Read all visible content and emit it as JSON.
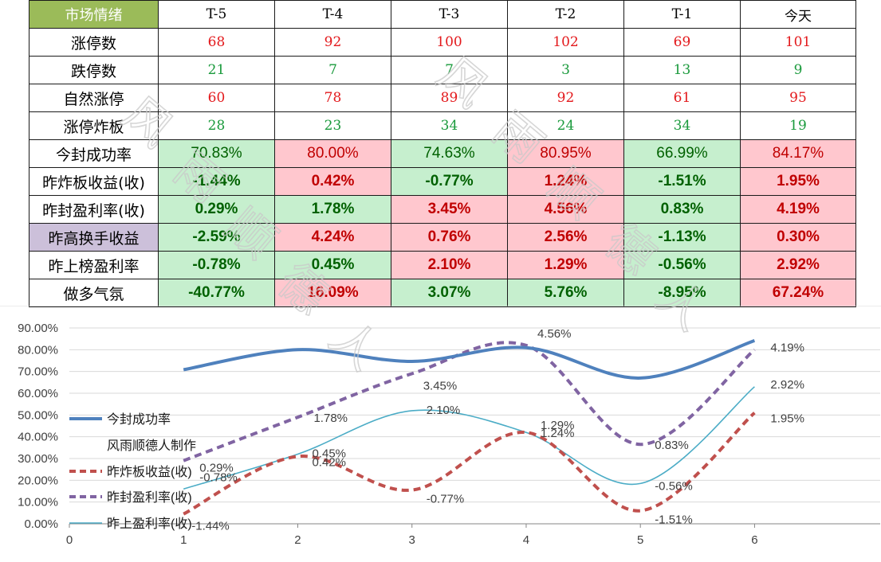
{
  "table": {
    "header": [
      "市场情绪",
      "T-5",
      "T-4",
      "T-3",
      "T-2",
      "T-1",
      "今天"
    ],
    "rows": [
      {
        "label": "涨停数",
        "values": [
          "68",
          "92",
          "100",
          "102",
          "69",
          "101"
        ],
        "color": "red"
      },
      {
        "label": "跌停数",
        "values": [
          "21",
          "7",
          "7",
          "3",
          "13",
          "9"
        ],
        "color": "green"
      },
      {
        "label": "自然涨停",
        "values": [
          "60",
          "78",
          "89",
          "92",
          "61",
          "95"
        ],
        "color": "red"
      },
      {
        "label": "涨停炸板",
        "values": [
          "28",
          "23",
          "34",
          "24",
          "34",
          "19"
        ],
        "color": "green"
      },
      {
        "label": "今封成功率",
        "values": [
          "70.83%",
          "80.00%",
          "74.63%",
          "80.95%",
          "66.99%",
          "84.17%"
        ],
        "fills": [
          "g",
          "r",
          "g",
          "r",
          "g",
          "r"
        ],
        "bold": false
      },
      {
        "label": "昨炸板收益(收)",
        "values": [
          "-1.44%",
          "0.42%",
          "-0.77%",
          "1.24%",
          "-1.51%",
          "1.95%"
        ],
        "fills": [
          "g",
          "r",
          "g",
          "r",
          "g",
          "r"
        ],
        "bold": true
      },
      {
        "label": "昨封盈利率(收)",
        "values": [
          "0.29%",
          "1.78%",
          "3.45%",
          "4.56%",
          "0.83%",
          "4.19%"
        ],
        "fills": [
          "g",
          "g",
          "r",
          "r",
          "g",
          "r"
        ],
        "bold": true
      },
      {
        "label": "昨高换手收益",
        "values": [
          "-2.59%",
          "4.24%",
          "0.76%",
          "2.56%",
          "-1.13%",
          "0.30%"
        ],
        "fills": [
          "g",
          "r",
          "r",
          "r",
          "g",
          "r"
        ],
        "bold": true,
        "purple": true
      },
      {
        "label": "昨上榜盈利率",
        "values": [
          "-0.78%",
          "0.45%",
          "2.10%",
          "1.29%",
          "-0.56%",
          "2.92%"
        ],
        "fills": [
          "g",
          "g",
          "r",
          "r",
          "g",
          "r"
        ],
        "bold": true
      },
      {
        "label": "做多气氛",
        "values": [
          "-40.77%",
          "16.09%",
          "3.07%",
          "5.76%",
          "-8.95%",
          "67.24%"
        ],
        "fills": [
          "g",
          "r",
          "g",
          "g",
          "g",
          "r"
        ],
        "bold": true
      }
    ]
  },
  "watermark": [
    "风",
    "雨",
    "顺",
    "德",
    "人"
  ],
  "colors": {
    "series1": "#4f81bd",
    "series2": "#c0504d",
    "series3": "#8064a2",
    "series4": "#4bacc6",
    "header_bg": "#9bbb59",
    "fill_green": "#c6efce",
    "fill_red": "#ffc7ce"
  },
  "chart_data": {
    "type": "line",
    "x": [
      1,
      2,
      3,
      4,
      5,
      6
    ],
    "xticks": [
      "0",
      "1",
      "2",
      "3",
      "4",
      "5",
      "6"
    ],
    "xlim": [
      0,
      7.1
    ],
    "ylim": [
      0,
      0.9
    ],
    "yticks": [
      "0.00%",
      "10.00%",
      "20.00%",
      "30.00%",
      "40.00%",
      "50.00%",
      "60.00%",
      "70.00%",
      "80.00%",
      "90.00%"
    ],
    "title": "",
    "xlabel": "",
    "ylabel": "",
    "smooth": true,
    "series": [
      {
        "name": "今封成功率",
        "values": [
          0.7083,
          0.8,
          0.7463,
          0.8095,
          0.6699,
          0.8417
        ],
        "style": "solid-thick",
        "color": "#4f81bd",
        "labels": []
      },
      {
        "name": "昨炸板收益(收)",
        "values": [
          0.045,
          0.31,
          0.155,
          0.42,
          0.06,
          0.51
        ],
        "style": "dashed",
        "color": "#c0504d",
        "labels": [
          "-1.44%",
          "0.42%",
          "-0.77%",
          "1.24%",
          "-1.51%",
          "1.95%"
        ]
      },
      {
        "name": "昨封盈利率(收)",
        "values": [
          0.29,
          0.49,
          0.69,
          0.82,
          0.365,
          0.8
        ],
        "style": "dashed",
        "color": "#8064a2",
        "labels": [
          "0.29%",
          "1.78%",
          "3.45%",
          "4.56%",
          "0.83%",
          "4.19%"
        ]
      },
      {
        "name": "昨上盈利率(收)",
        "values": [
          0.16,
          0.32,
          0.52,
          0.42,
          0.185,
          0.63
        ],
        "style": "thin",
        "color": "#4bacc6",
        "labels": [
          "-0.78%",
          "0.45%",
          "2.10%",
          "1.29%",
          "-0.56%",
          "2.92%"
        ]
      }
    ],
    "legend": [
      {
        "name": "今封成功率",
        "marker": "solid-thick",
        "color": "#4f81bd"
      },
      {
        "name": "风雨顺德人制作",
        "marker": "none",
        "color": ""
      },
      {
        "name": "昨炸板收益(收)",
        "marker": "dashed",
        "color": "#c0504d"
      },
      {
        "name": "昨封盈利率(收)",
        "marker": "dashed",
        "color": "#8064a2"
      },
      {
        "name": "昨上盈利率(收)",
        "marker": "thin",
        "color": "#4bacc6"
      }
    ],
    "legend_position": "left"
  }
}
